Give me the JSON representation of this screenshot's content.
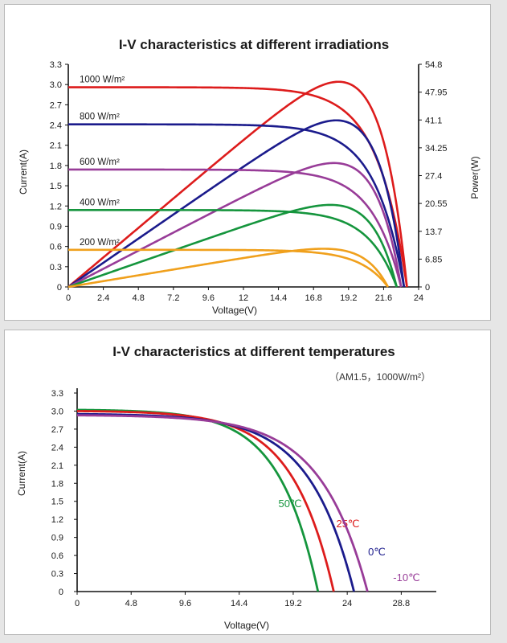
{
  "chart_data": [
    {
      "type": "line",
      "title": "I-V characteristics at different irradiations",
      "xlabel": "Voltage(V)",
      "ylabel": "Current(A)",
      "y2label": "Power(W)",
      "xlim": [
        0,
        24
      ],
      "ylim": [
        0,
        3.3
      ],
      "y2lim": [
        0,
        54.8
      ],
      "x_ticks": [
        "0",
        "2.4",
        "4.8",
        "7.2",
        "9.6",
        "12",
        "14.4",
        "16.8",
        "19.2",
        "21.6",
        "24"
      ],
      "y_ticks": [
        "0",
        "0.3",
        "0.6",
        "0.9",
        "1.2",
        "1.5",
        "1.8",
        "2.1",
        "2.4",
        "2.7",
        "3.0",
        "3.3"
      ],
      "y2_ticks": [
        "0",
        "6.85",
        "13.7",
        "20.55",
        "27.4",
        "34.25",
        "41.1",
        "47.95",
        "54.8"
      ],
      "series": [
        {
          "name": "1000 W/m²",
          "color": "#dd1c1c",
          "isc": 2.96,
          "voc": 23.2,
          "vmp": 19.0,
          "pmax": 50.5
        },
        {
          "name": "800 W/m²",
          "color": "#1b1b8c",
          "isc": 2.41,
          "voc": 23.0,
          "vmp": 19.0,
          "pmax": 41.0
        },
        {
          "name": "600 W/m²",
          "color": "#983c98",
          "isc": 1.74,
          "voc": 22.8,
          "vmp": 19.0,
          "pmax": 30.5
        },
        {
          "name": "400 W/m²",
          "color": "#15953d",
          "isc": 1.14,
          "voc": 22.5,
          "vmp": 19.0,
          "pmax": 20.2
        },
        {
          "name": "200 W/m²",
          "color": "#f0a01c",
          "isc": 0.55,
          "voc": 21.9,
          "vmp": 18.8,
          "pmax": 9.4
        }
      ]
    },
    {
      "type": "line",
      "title": "I-V characteristics at different temperatures",
      "subtitle": "（AM1.5，1000W/m²）",
      "xlabel": "Voltage(V)",
      "ylabel": "Current(A)",
      "xlim": [
        0,
        31.2
      ],
      "ylim": [
        0,
        3.3
      ],
      "x_ticks": [
        "0",
        "4.8",
        "9.6",
        "14.4",
        "19.2",
        "24",
        "28.8"
      ],
      "y_ticks": [
        "0",
        "0.3",
        "0.6",
        "0.9",
        "1.2",
        "1.5",
        "1.8",
        "2.1",
        "2.4",
        "2.7",
        "3.0",
        "3.3"
      ],
      "series": [
        {
          "name": "50℃",
          "color": "#15953d",
          "isc": 3.02,
          "voc": 21.4
        },
        {
          "name": "25℃",
          "color": "#dd1c1c",
          "isc": 3.0,
          "voc": 22.8
        },
        {
          "name": "0℃",
          "color": "#1b1b8c",
          "isc": 2.95,
          "voc": 24.6
        },
        {
          "name": "-10℃",
          "color": "#983c98",
          "isc": 2.93,
          "voc": 25.8
        }
      ]
    }
  ]
}
